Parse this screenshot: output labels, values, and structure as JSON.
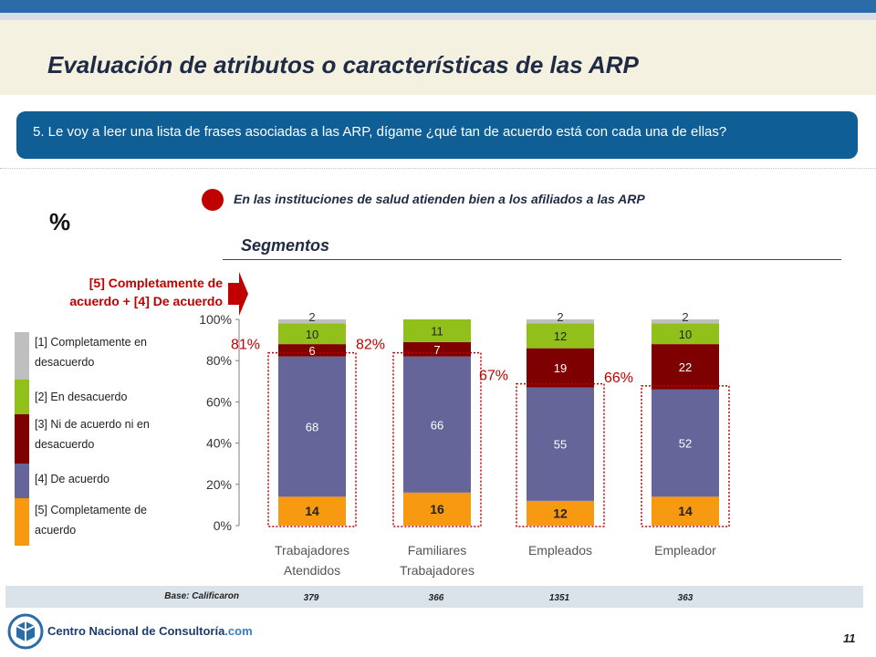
{
  "title": "Evaluación de atributos o características de las ARP",
  "question": "5. Le voy a leer una lista de frases asociadas a las ARP, dígame ¿qué tan de acuerdo está con cada una de ellas?",
  "statement": "En las instituciones de salud atienden bien a los afiliados a las ARP",
  "percent_symbol": "%",
  "segmentos_label": "Segmentos",
  "top_box_label_line1": "[5] Completamente de",
  "top_box_label_line2": "acuerdo + [4] De acuerdo",
  "base_label": "Base: Calificaron",
  "page_number": "11",
  "logo_text": "Centro Nacional de Consultoría",
  "logo_suffix": ".com",
  "colors": {
    "c1": "#bfbfbf",
    "c2": "#92c01b",
    "c3": "#7f0000",
    "c4": "#65659a",
    "c5": "#f79a12",
    "accent": "#c00000",
    "question_bg": "#0f5e95"
  },
  "chart_data": {
    "type": "bar",
    "stacked": true,
    "ylim": [
      0,
      100
    ],
    "yticks": [
      "0%",
      "20%",
      "40%",
      "60%",
      "80%",
      "100%"
    ],
    "categories": [
      [
        "Trabajadores",
        "Atendidos"
      ],
      [
        "Familiares",
        "Trabajadores"
      ],
      [
        "Empleados"
      ],
      [
        "Empleador"
      ]
    ],
    "series": [
      {
        "name": "[5] Completamente de acuerdo",
        "color": "#f79a12",
        "values": [
          14,
          16,
          12,
          14
        ]
      },
      {
        "name": "[4] De acuerdo",
        "color": "#65659a",
        "values": [
          68,
          66,
          55,
          52
        ]
      },
      {
        "name": "[3] Ni de acuerdo ni en desacuerdo",
        "color": "#7f0000",
        "values": [
          6,
          7,
          19,
          22
        ]
      },
      {
        "name": "[2] En desacuerdo",
        "color": "#92c01b",
        "values": [
          10,
          11,
          12,
          10
        ]
      },
      {
        "name": "[1] Completamente en desacuerdo",
        "color": "#bfbfbf",
        "values": [
          2,
          null,
          2,
          2
        ]
      }
    ],
    "top_box": [
      "81%",
      "82%",
      "67%",
      "66%"
    ],
    "base": [
      "379",
      "366",
      "1351",
      "363"
    ]
  }
}
